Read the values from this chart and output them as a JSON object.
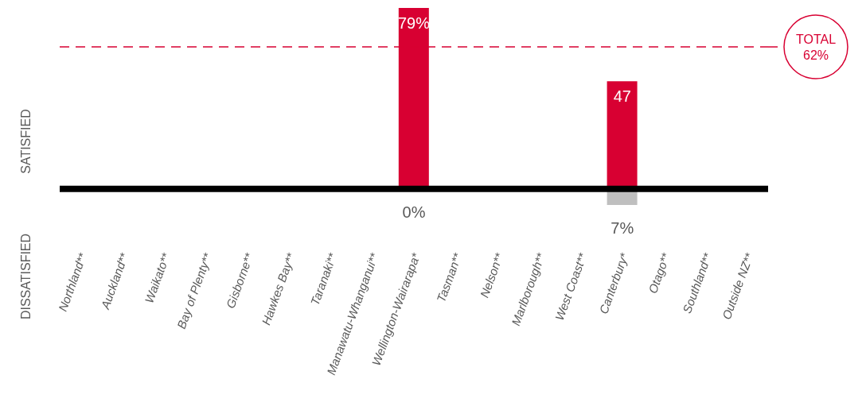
{
  "chart_data": {
    "type": "bar",
    "ylabel": "SATISFIED",
    "annotations": [
      "DISSATISFIED"
    ],
    "categories": [
      "Northland**",
      "Auckland**",
      "Waikato**",
      "Bay of Plenty**",
      "Gisborne**",
      "Hawkes Bay**",
      "Taranaki**",
      "Manawatu-Whanganui**",
      "Wellington-Wairarapa*",
      "Tasman**",
      "Nelson**",
      "Marlborough**",
      "West Coast**",
      "Canterbury*",
      "Otago**",
      "Southland**",
      "Outside NZ**"
    ],
    "series": [
      {
        "color": "#d80032",
        "values": [
          null,
          null,
          null,
          null,
          null,
          null,
          null,
          null,
          79,
          null,
          null,
          null,
          null,
          47,
          null,
          null,
          null
        ],
        "value_labels": [
          null,
          null,
          null,
          null,
          null,
          null,
          null,
          null,
          "79%",
          null,
          null,
          null,
          null,
          "47",
          null,
          null,
          null
        ]
      },
      {
        "color": "#bfbfbf",
        "axis": "y2",
        "values": [
          null,
          null,
          null,
          null,
          null,
          null,
          null,
          null,
          0,
          null,
          null,
          null,
          null,
          7,
          null,
          null,
          null
        ],
        "value_labels": [
          null,
          null,
          null,
          null,
          null,
          null,
          null,
          null,
          "0%",
          null,
          null,
          null,
          null,
          "7%",
          null,
          null,
          null
        ]
      }
    ],
    "ref_lines": [
      {
        "axis": "y",
        "value": 62,
        "label": "TOTAL 62%",
        "color": "#d80032",
        "line_style": "dashed"
      }
    ],
    "grid": false,
    "legend": false
  }
}
